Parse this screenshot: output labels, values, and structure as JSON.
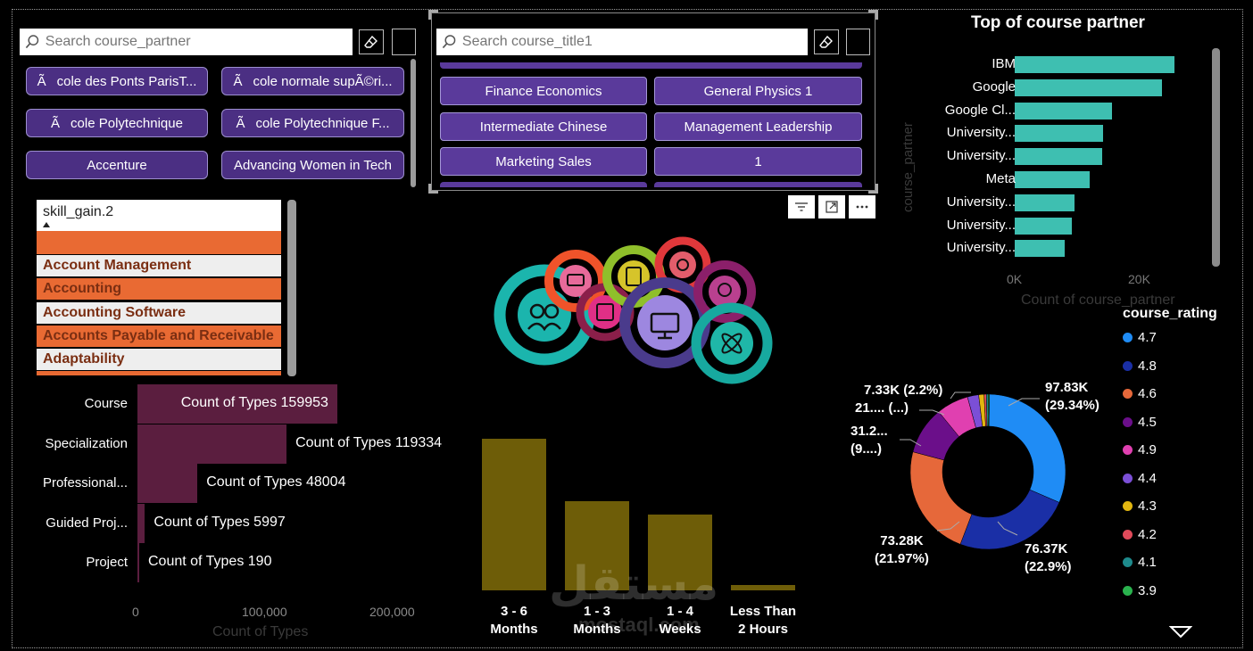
{
  "partner_search": {
    "placeholder": "Search course_partner"
  },
  "partner_buttons": [
    "Ãcole des Ponts ParisT...",
    "Ãcole normale supÃ©ri...",
    "Ãcole Polytechnique",
    "Ãcole Polytechnique F...",
    "Accenture",
    "Advancing Women in Tech"
  ],
  "title_search": {
    "placeholder": "Search course_title1"
  },
  "title_buttons": [
    "Finance Economics",
    "General Physics 1",
    "Intermediate Chinese",
    "Management Leadership",
    "Marketing Sales",
    "1"
  ],
  "skill_list": {
    "header": "skill_gain.2",
    "items": [
      "",
      "Account Management",
      "Accounting",
      "Accounting Software",
      "Accounts Payable and Receivable",
      "Adaptability"
    ]
  },
  "icons": {
    "eraser": "eraser-icon",
    "search": "search-icon",
    "filter": "filter-icon",
    "focus": "focus-mode-icon",
    "more": "more-options-icon",
    "dropdown": "dropdown-arrow-icon"
  },
  "partner_chart": {
    "chart_data": {
      "type": "bar",
      "orientation": "horizontal",
      "title": "Top of course partner",
      "xlabel": "Count of course_partner",
      "ylabel": "course_partner",
      "categories": [
        "IBM",
        "Google",
        "Google Cl...",
        "University...",
        "University...",
        "Meta",
        "University...",
        "University...",
        "University..."
      ],
      "values": [
        25500,
        23500,
        15500,
        14200,
        14000,
        12000,
        9500,
        9200,
        8000
      ],
      "xlim": [
        0,
        30000
      ],
      "xticks": [
        "0K",
        "20K"
      ],
      "color": "#3ebfb1"
    }
  },
  "types_chart": {
    "chart_data": {
      "type": "bar",
      "orientation": "horizontal",
      "xlabel": "Count of Types",
      "categories": [
        "Course",
        "Specialization",
        "Professional...",
        "Guided Proj...",
        "Project"
      ],
      "values": [
        159953,
        119334,
        48004,
        5997,
        190
      ],
      "labels": [
        "Count of Types 159953",
        "Count of Types 119334",
        "Count of Types 48004",
        "Count of Types 5997",
        "Count of Types 190"
      ],
      "xlim": [
        0,
        220000
      ],
      "xticks": [
        "0",
        "100,000",
        "200,000"
      ],
      "color": "#5b1e3f"
    }
  },
  "duration_chart": {
    "chart_data": {
      "type": "bar",
      "categories": [
        "3 - 6 Months",
        "1 - 3 Months",
        "1 - 4 Weeks",
        "Less Than 2 Hours"
      ],
      "category_lines": [
        [
          "3 - 6",
          "Months"
        ],
        [
          "1 - 3",
          "Months"
        ],
        [
          "1 - 4",
          "Weeks"
        ],
        [
          "Less Than",
          "2 Hours"
        ]
      ],
      "values": [
        170,
        100,
        85,
        6
      ],
      "color": "#6e5d08"
    }
  },
  "rating_chart": {
    "chart_data": {
      "type": "pie",
      "donut": true,
      "legend_title": "course_rating",
      "legend_position": "right",
      "series": [
        {
          "name": "4.7",
          "value": 97830,
          "label": [
            "97.83K",
            "(29.34%)"
          ],
          "color": "#1f8cf5"
        },
        {
          "name": "4.8",
          "value": 76370,
          "label": [
            "76.37K",
            "(22.9%)"
          ],
          "color": "#1a2fa6"
        },
        {
          "name": "4.6",
          "value": 73280,
          "label": [
            "73.28K",
            "(21.97%)"
          ],
          "color": "#e6683a"
        },
        {
          "name": "4.5",
          "value": 31200,
          "label": [
            "31.2...",
            "(9....)"
          ],
          "color": "#6b0f8a"
        },
        {
          "name": "4.9",
          "value": 21000,
          "label": [
            "21.... (...)"
          ],
          "color": "#e040b0"
        },
        {
          "name": "4.4",
          "value": 7330,
          "label": [
            "7.33K (2.2%)"
          ],
          "color": "#7b4fd6"
        },
        {
          "name": "4.3",
          "value": 3500,
          "color": "#e2b610"
        },
        {
          "name": "4.2",
          "value": 1500,
          "color": "#e04a5a"
        },
        {
          "name": "4.1",
          "value": 1200,
          "color": "#1e8a8c"
        },
        {
          "name": "3.9",
          "value": 800,
          "color": "#2ab24e"
        }
      ]
    }
  },
  "watermark": {
    "brand": "مستقل",
    "url": "mostaql.com"
  }
}
